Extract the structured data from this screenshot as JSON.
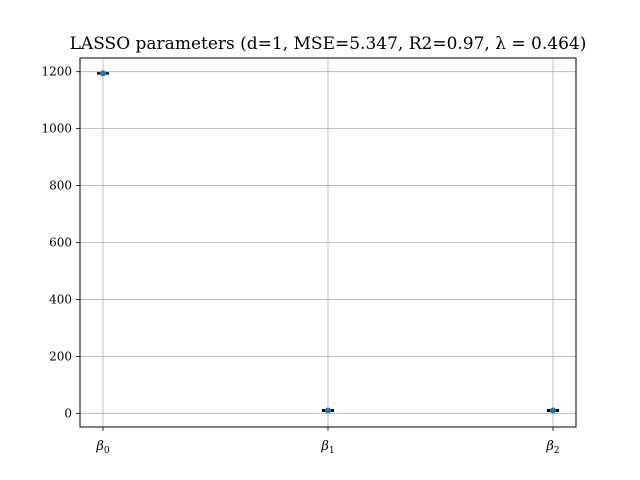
{
  "chart_data": {
    "type": "scatter",
    "title": "LASSO parameters (d=1, MSE=5.347, R2=0.97, λ = 0.464)",
    "xlabel": "",
    "ylabel": "",
    "categories": [
      {
        "sym": "β",
        "sub": "0"
      },
      {
        "sym": "β",
        "sub": "1"
      },
      {
        "sym": "β",
        "sub": "2"
      }
    ],
    "values": [
      1194,
      10,
      10
    ],
    "error": [
      2,
      3,
      3
    ],
    "ylim": [
      -48,
      1248
    ],
    "yticks": [
      0,
      200,
      400,
      600,
      800,
      1000,
      1200
    ],
    "grid": true,
    "colors": {
      "marker": "#1f77b4",
      "errorbar": "#000000",
      "grid": "#b0b0b0"
    }
  }
}
